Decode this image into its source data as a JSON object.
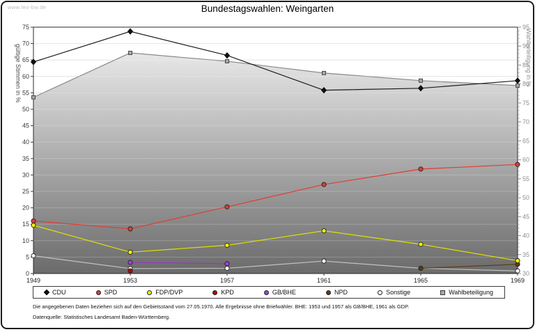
{
  "window": {
    "watermark": "www.leo-bw.de"
  },
  "title": "Bundestagswahlen: Weingarten",
  "chart_data": {
    "type": "line",
    "title": "Bundestagswahlen: Weingarten",
    "x": [
      1949,
      1953,
      1957,
      1961,
      1965,
      1969
    ],
    "left_axis": {
      "label": "gültige Stimmen in %",
      "min": 0,
      "max": 75,
      "step": 5
    },
    "right_axis": {
      "label": "Wahlbeteiligung in %",
      "min": 30,
      "max": 95,
      "step": 5,
      "minor": 1
    },
    "grid": true,
    "legend_position": "bottom",
    "series": [
      {
        "name": "CDU",
        "axis": "left",
        "color": "#1c1c1c",
        "marker": "diamond",
        "marker_fill": "#111111",
        "values": [
          64.4,
          73.7,
          66.4,
          55.8,
          56.4,
          58.7
        ]
      },
      {
        "name": "SPD",
        "axis": "left",
        "color": "#e23b32",
        "marker": "circle",
        "marker_fill": "#e23b32",
        "values": [
          16.0,
          13.6,
          20.3,
          27.1,
          31.8,
          33.2
        ]
      },
      {
        "name": "FDP/DVP",
        "axis": "left",
        "color": "#e0e000",
        "marker": "circle",
        "marker_fill": "#f2f200",
        "values": [
          14.7,
          6.5,
          8.6,
          13.0,
          8.9,
          3.9
        ]
      },
      {
        "name": "KPD",
        "axis": "left",
        "color": "#b40000",
        "marker": "circle",
        "marker_fill": "#c00000",
        "values": [
          null,
          0.8,
          null,
          null,
          null,
          null
        ]
      },
      {
        "name": "GB/BHE",
        "axis": "left",
        "color": "#9a35cd",
        "marker": "circle",
        "marker_fill": "#a040e0",
        "values": [
          null,
          3.4,
          3.0,
          null,
          null,
          null
        ]
      },
      {
        "name": "NPD",
        "axis": "left",
        "color": "#5d3a1a",
        "marker": "circle",
        "marker_fill": "#5d3a1a",
        "values": [
          null,
          null,
          null,
          null,
          1.6,
          2.8
        ]
      },
      {
        "name": "Sonstige",
        "axis": "left",
        "color": "#c2c2c2",
        "marker": "circle",
        "marker_fill": "#f5f5f5",
        "values": [
          5.4,
          1.5,
          1.6,
          3.8,
          1.6,
          0.8
        ]
      },
      {
        "name": "Wahlbeteiligung",
        "axis": "right",
        "color": "#8a8a8a",
        "marker": "square",
        "marker_fill": "#a8a8a8",
        "area": true,
        "values": [
          76.5,
          88.2,
          86.0,
          82.9,
          80.9,
          79.6
        ]
      }
    ]
  },
  "footnotes": {
    "note": "Die angegebenen Daten beziehen sich auf den Gebietsstand vom 27.05.1970. Alle Ergebnisse ohne Briefwähler. BHE: 1953 und 1957 als GB/BHE, 1961 als GDP.",
    "source": "Datenquelle: Statistisches Landesamt Baden-Württemberg."
  }
}
